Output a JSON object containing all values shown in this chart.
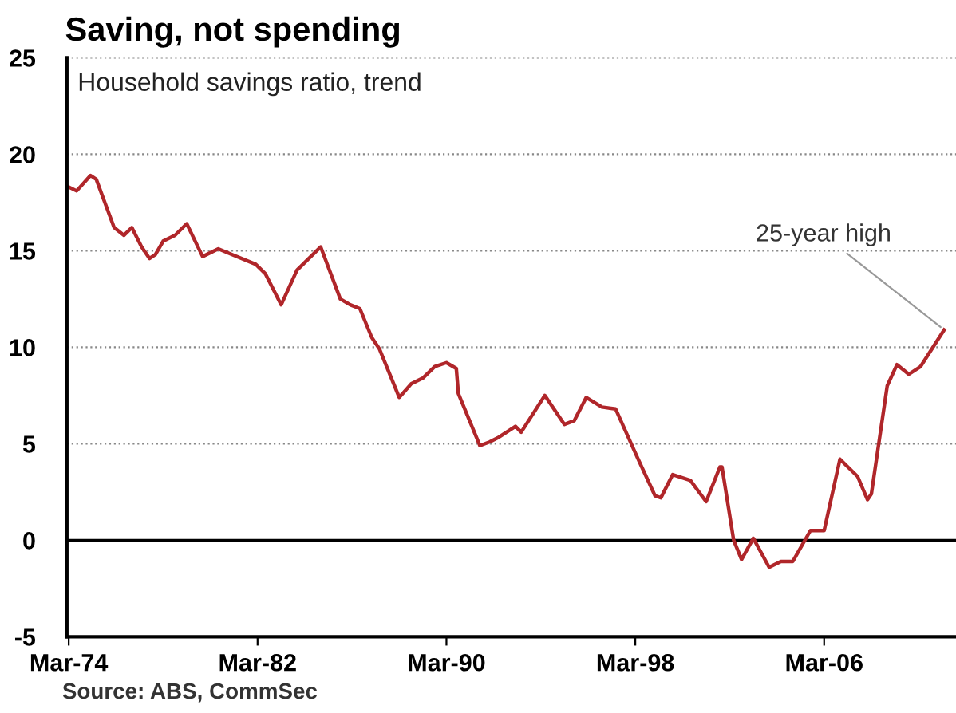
{
  "chart_data": {
    "type": "line",
    "title": "Saving, not spending",
    "subtitle": "Household savings ratio, trend",
    "x": [
      "1974-03",
      "1974-07",
      "1975-02",
      "1975-05",
      "1976-02",
      "1976-07",
      "1976-11",
      "1977-04",
      "1977-08",
      "1977-11",
      "1978-03",
      "1978-09",
      "1979-03",
      "1979-11",
      "1980-07",
      "1981-02",
      "1982-02",
      "1982-07",
      "1983-03",
      "1983-11",
      "1984-09",
      "1984-11",
      "1985-09",
      "1986-02",
      "1986-07",
      "1987-01",
      "1987-05",
      "1988-03",
      "1988-09",
      "1989-03",
      "1989-09",
      "1990-03",
      "1990-08",
      "1990-09",
      "1991-08",
      "1992-01",
      "1992-05",
      "1993-02",
      "1993-05",
      "1994-05",
      "1995-03",
      "1995-08",
      "1996-02",
      "1996-10",
      "1997-05",
      "1998-04",
      "1999-01",
      "1999-04",
      "1999-10",
      "2000-07",
      "2001-03",
      "2001-10",
      "2001-11",
      "2002-05",
      "2002-09",
      "2003-03",
      "2003-11",
      "2004-05",
      "2004-11",
      "2005-08",
      "2006-03",
      "2006-11",
      "2007-08",
      "2008-01",
      "2008-03",
      "2008-11",
      "2009-04",
      "2009-10",
      "2010-04",
      "2011-04"
    ],
    "series": [
      {
        "color": "#b0262a",
        "values": [
          18.3,
          18.1,
          18.9,
          18.7,
          16.2,
          15.8,
          16.2,
          15.2,
          14.6,
          14.8,
          15.5,
          15.8,
          16.4,
          14.7,
          15.1,
          14.8,
          14.3,
          13.8,
          12.2,
          14.0,
          15.0,
          15.2,
          12.5,
          12.2,
          12.0,
          10.5,
          9.9,
          7.4,
          8.1,
          8.4,
          9.0,
          9.2,
          8.9,
          7.6,
          4.9,
          5.1,
          5.3,
          5.9,
          5.6,
          7.5,
          6.0,
          6.2,
          7.4,
          6.9,
          6.8,
          4.3,
          2.3,
          2.2,
          3.4,
          3.1,
          2.0,
          3.8,
          3.8,
          0.0,
          -1.0,
          0.1,
          -1.4,
          -1.1,
          -1.1,
          0.5,
          0.5,
          4.2,
          3.3,
          2.1,
          2.4,
          8.0,
          9.1,
          8.6,
          9.0,
          10.9
        ]
      }
    ],
    "xlim": [
      "1974-02",
      "2011-10"
    ],
    "xticks": [
      {
        "value": "1974-03",
        "label": "Mar-74"
      },
      {
        "value": "1982-03",
        "label": "Mar-82"
      },
      {
        "value": "1990-03",
        "label": "Mar-90"
      },
      {
        "value": "1998-03",
        "label": "Mar-98"
      },
      {
        "value": "2006-03",
        "label": "Mar-06"
      }
    ],
    "ylim": [
      -5,
      25
    ],
    "yticks": [
      -5,
      0,
      5,
      10,
      15,
      20,
      25
    ],
    "grid": "y",
    "marker": "none",
    "line_style": "solid",
    "ref_lines": [
      {
        "axis": "y",
        "value": 0,
        "color": "#000000"
      }
    ],
    "annotations": [
      {
        "text": "25-year high",
        "x": "2011-04",
        "y": 10.9
      },
      "Source: ABS, CommSec"
    ]
  }
}
